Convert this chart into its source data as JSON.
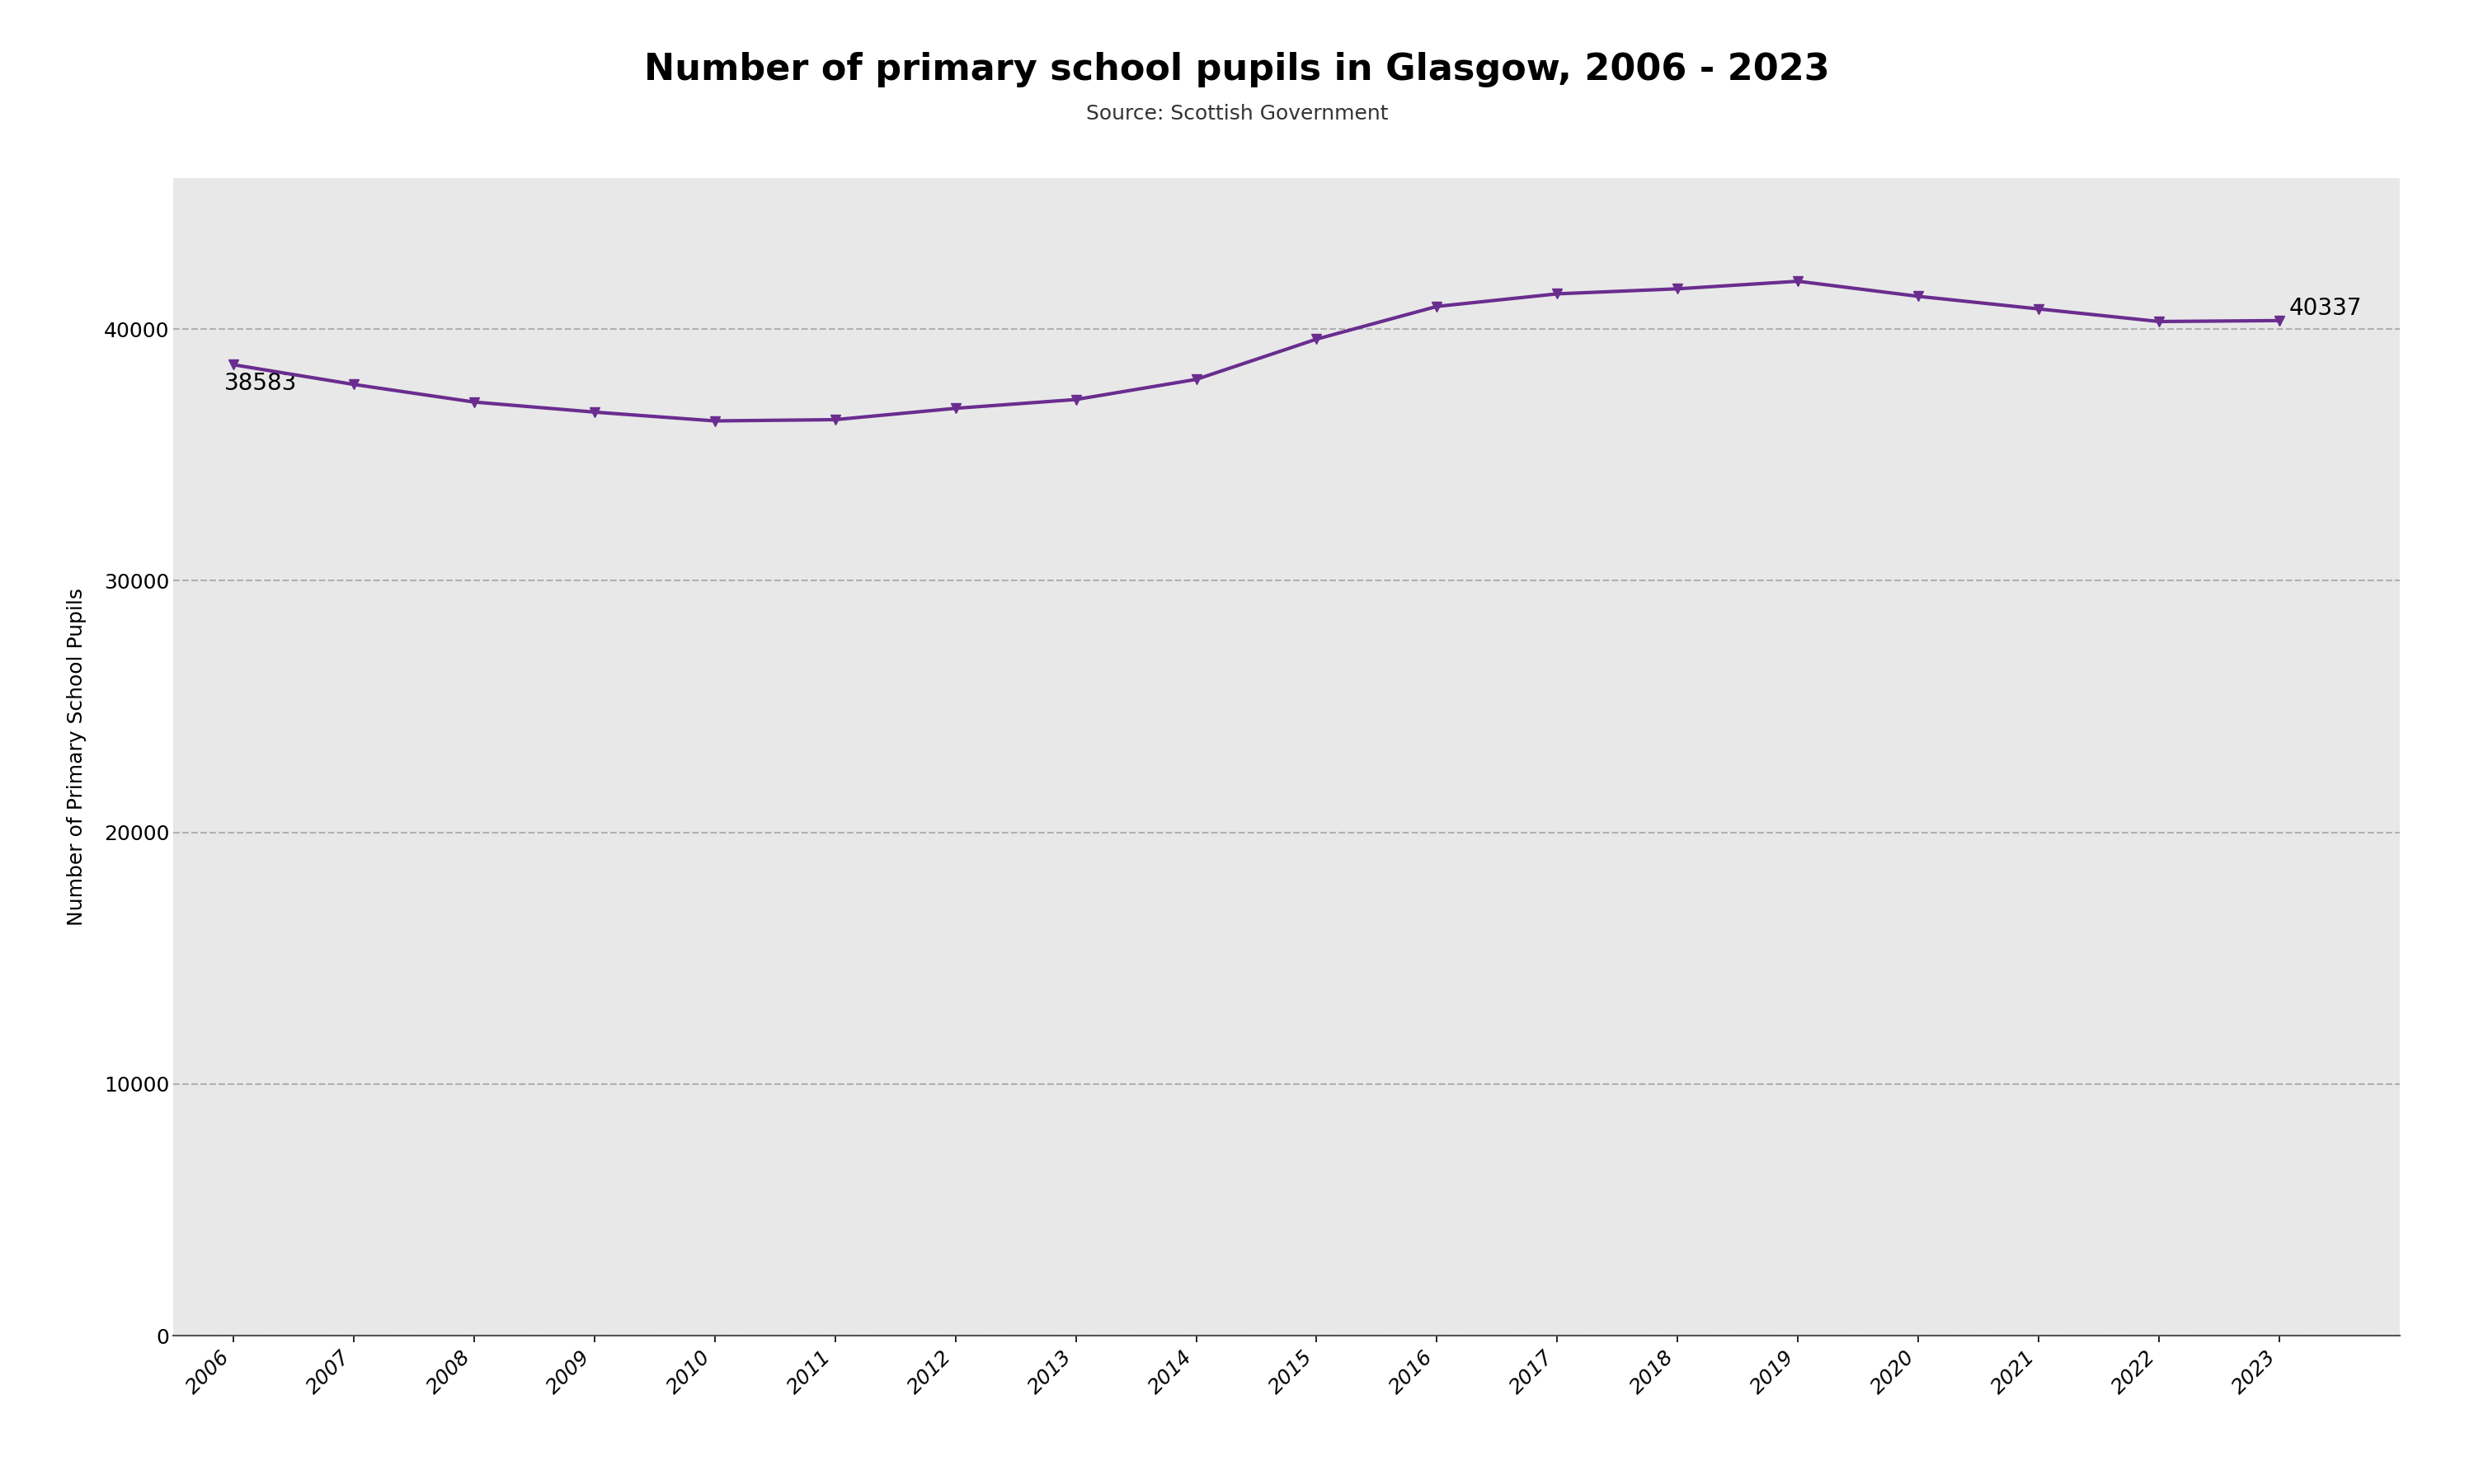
{
  "title": "Number of primary school pupils in Glasgow, 2006 - 2023",
  "subtitle": "Source: Scottish Government",
  "xlabel": "",
  "ylabel": "Number of Primary School Pupils",
  "years": [
    2006,
    2007,
    2008,
    2009,
    2010,
    2011,
    2012,
    2013,
    2014,
    2015,
    2016,
    2017,
    2018,
    2019,
    2020,
    2021,
    2022,
    2023
  ],
  "values": [
    38583,
    37800,
    37100,
    36700,
    36350,
    36400,
    36850,
    37200,
    38000,
    39600,
    40900,
    41400,
    41600,
    41900,
    41300,
    40800,
    40300,
    40337
  ],
  "line_color": "#6a2d8f",
  "marker": "v",
  "marker_size": 9,
  "line_width": 3.0,
  "ylim": [
    0,
    46000
  ],
  "yticks": [
    0,
    10000,
    20000,
    30000,
    40000
  ],
  "grid_color": "#b0b0b0",
  "background_color": "#e8e8e8",
  "fig_background": "#ffffff",
  "annotate_first": {
    "year": 2006,
    "value": 38583,
    "text": "38583"
  },
  "annotate_last": {
    "year": 2023,
    "value": 40337,
    "text": "40337"
  },
  "title_fontsize": 32,
  "subtitle_fontsize": 18,
  "ylabel_fontsize": 18,
  "tick_fontsize": 18,
  "annotation_fontsize": 20
}
